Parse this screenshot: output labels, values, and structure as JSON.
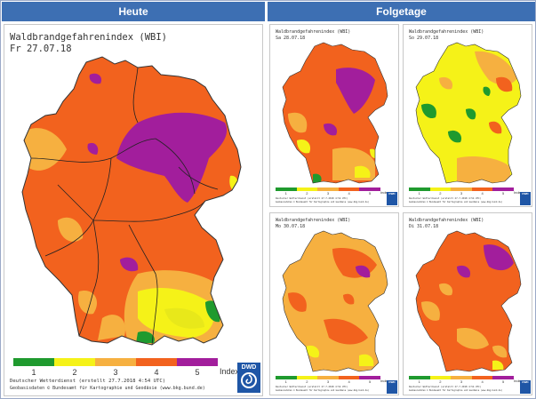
{
  "headers": {
    "left": "Heute",
    "right": "Folgetage"
  },
  "main": {
    "title": "Waldbrandgefahrenindex (WBI)",
    "date": "Fr 27.07.18",
    "footer_line1": "Deutscher Wetterdienst (erstellt 27.7.2018 4:54 UTC)",
    "footer_line2": "Geobasisdaten © Bundesamt für Kartographie und Geodäsie (www.bkg.bund.de)"
  },
  "legend": {
    "levels": [
      "1",
      "2",
      "3",
      "4",
      "5"
    ],
    "unit": "Index",
    "colors": [
      "#1f9a2e",
      "#f5f218",
      "#f6b040",
      "#f2621e",
      "#a21e9c"
    ]
  },
  "logo": {
    "text": "DWD"
  },
  "forecasts": [
    {
      "title": "Waldbrandgefahrenindex (WBI)",
      "date": "Sa 28.07.18",
      "dominant_level": 4
    },
    {
      "title": "Waldbrandgefahrenindex (WBI)",
      "date": "So 29.07.18",
      "dominant_level": 2
    },
    {
      "title": "Waldbrandgefahrenindex (WBI)",
      "date": "Mo 30.07.18",
      "dominant_level": 3
    },
    {
      "title": "Waldbrandgefahrenindex (WBI)",
      "date": "Di 31.07.18",
      "dominant_level": 4
    }
  ],
  "small_footer": "Deutscher Wetterdienst (erstellt 27.7.2018 4:54 UTC)",
  "small_footer2": "Geobasisdaten © Bundesamt für Kartographie und Geodäsie (www.bkg.bund.de)"
}
